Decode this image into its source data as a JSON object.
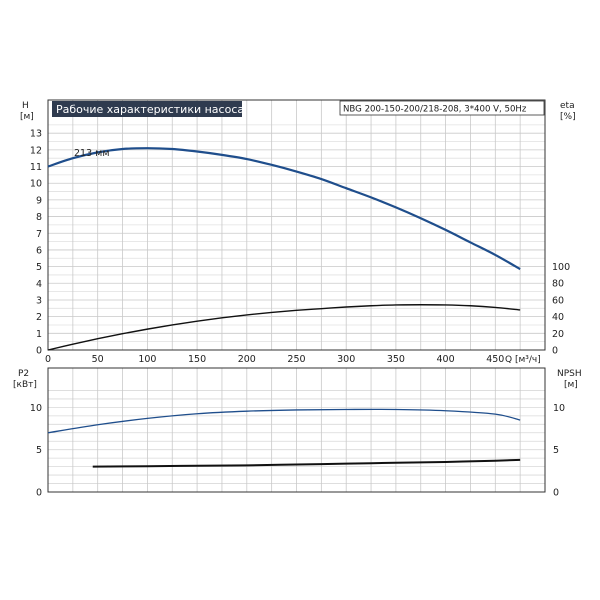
{
  "chart_data": [
    {
      "type": "line",
      "title": "Рабочие характеристики насоса",
      "subtitle": "NBG 200-150-200/218-208, 3*400 V, 50Hz",
      "xlabel": "Q [м³/ч]",
      "xlim": [
        0,
        500
      ],
      "x_ticks": [
        0,
        50,
        100,
        150,
        200,
        250,
        300,
        350,
        400,
        450
      ],
      "y_left": {
        "label_top": "H",
        "label_unit": "[м]",
        "ylim": [
          0,
          14
        ],
        "ticks": [
          0,
          1,
          2,
          3,
          4,
          5,
          6,
          7,
          8,
          9,
          10,
          11,
          12,
          13
        ]
      },
      "y_right": {
        "label_top": "eta",
        "label_unit": "[%]",
        "ylim": [
          0,
          100
        ],
        "ticks": [
          0,
          20,
          40,
          60,
          80,
          100
        ]
      },
      "grid": true,
      "series": [
        {
          "name": "213 мм",
          "axis": "H",
          "color": "#1f4e8c",
          "x": [
            0,
            25,
            50,
            75,
            100,
            125,
            150,
            175,
            200,
            225,
            250,
            275,
            300,
            325,
            350,
            375,
            400,
            425,
            450,
            475
          ],
          "y": [
            11.0,
            11.5,
            11.85,
            12.05,
            12.1,
            12.05,
            11.9,
            11.7,
            11.45,
            11.1,
            10.7,
            10.25,
            9.7,
            9.15,
            8.55,
            7.9,
            7.2,
            6.45,
            5.7,
            4.85
          ]
        },
        {
          "name": "",
          "axis": "eta",
          "color": "#111111",
          "x": [
            0,
            25,
            50,
            75,
            100,
            125,
            150,
            175,
            200,
            225,
            250,
            275,
            300,
            325,
            350,
            375,
            400,
            425,
            450,
            475
          ],
          "y": [
            0,
            7,
            13.5,
            19.5,
            25,
            30,
            34.5,
            38.5,
            42,
            45,
            47.5,
            49.5,
            51.5,
            53,
            54,
            54.2,
            54,
            53,
            51,
            48
          ]
        }
      ]
    },
    {
      "type": "line",
      "xlim": [
        0,
        500
      ],
      "y_left": {
        "label_top": "P2",
        "label_unit": "[кВт]",
        "ylim": [
          0,
          13
        ],
        "ticks": [
          0,
          5,
          10
        ]
      },
      "y_right": {
        "label_top": "NPSH",
        "label_unit": "[м]",
        "ylim": [
          0,
          13
        ],
        "ticks": [
          0,
          5,
          10
        ]
      },
      "grid": true,
      "series": [
        {
          "name": "",
          "axis": "P2",
          "color": "#1f4e8c",
          "x": [
            0,
            50,
            100,
            150,
            200,
            250,
            300,
            350,
            400,
            450,
            475
          ],
          "y": [
            7.0,
            7.95,
            8.7,
            9.25,
            9.55,
            9.7,
            9.75,
            9.75,
            9.6,
            9.2,
            8.5
          ]
        },
        {
          "name": "",
          "axis": "NPSH",
          "color": "#111111",
          "x": [
            45,
            100,
            150,
            200,
            250,
            300,
            350,
            400,
            450,
            475
          ],
          "y": [
            3.0,
            3.05,
            3.1,
            3.15,
            3.25,
            3.35,
            3.45,
            3.55,
            3.7,
            3.8
          ]
        }
      ]
    }
  ]
}
